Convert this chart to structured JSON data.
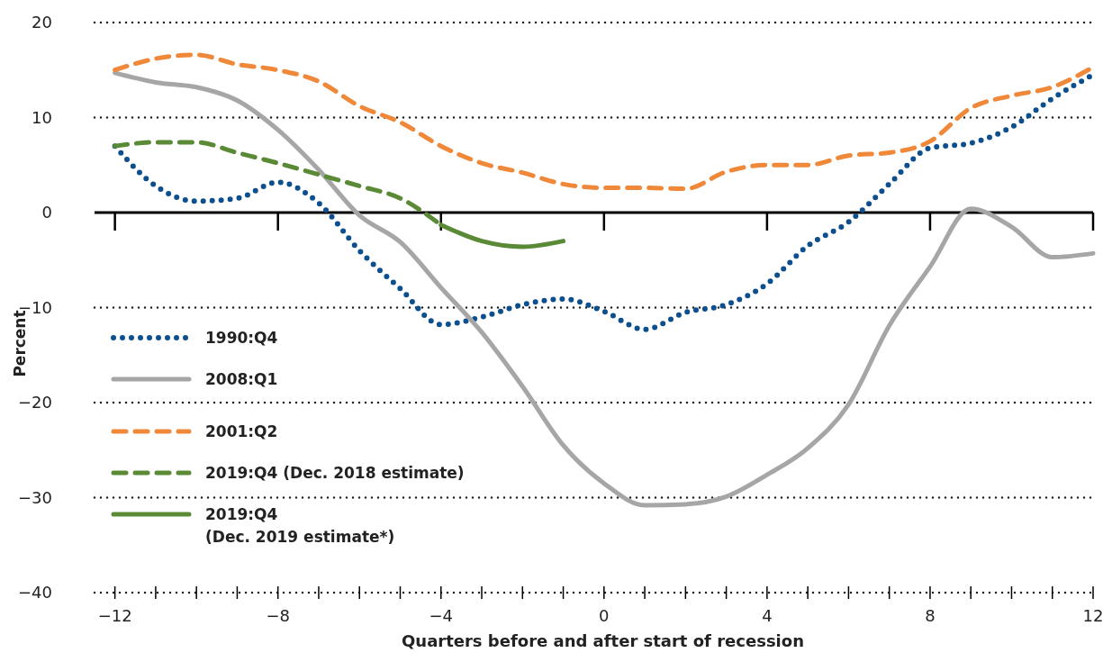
{
  "chart_data": {
    "type": "line",
    "xlabel": "Quarters before and after start of recession",
    "ylabel": "Percent",
    "xlim": [
      -12.5,
      12
    ],
    "xticks": [
      -12,
      {
        "value": -11,
        "label": null
      },
      {
        "value": -10,
        "label": null
      },
      {
        "value": -9,
        "label": null
      },
      -8,
      {
        "value": -7,
        "label": null
      },
      {
        "value": -6,
        "label": null
      },
      {
        "value": -5,
        "label": null
      },
      -4,
      {
        "value": -3,
        "label": null
      },
      {
        "value": -2,
        "label": null
      },
      {
        "value": -1,
        "label": null
      },
      0,
      {
        "value": 1,
        "label": null
      },
      {
        "value": 2,
        "label": null
      },
      {
        "value": 3,
        "label": null
      },
      4,
      {
        "value": 5,
        "label": null
      },
      {
        "value": 6,
        "label": null
      },
      {
        "value": 7,
        "label": null
      },
      8,
      {
        "value": 9,
        "label": null
      },
      {
        "value": 10,
        "label": null
      },
      {
        "value": 11,
        "label": null
      },
      12
    ],
    "ylim": [
      -40,
      20
    ],
    "yticks": [
      -40,
      -30,
      -20,
      -10,
      0,
      10,
      20
    ],
    "grid": "y",
    "legend": "left",
    "ref_lines": [
      {
        "axis": "y",
        "value": 0,
        "color": "#000000"
      }
    ],
    "x": [
      -12,
      -11,
      -10,
      -9,
      -8,
      -7,
      -6,
      -5,
      -4,
      -3,
      -2,
      -1,
      0,
      1,
      2,
      3,
      4,
      5,
      6,
      7,
      8,
      9,
      10,
      11,
      12
    ],
    "series": [
      {
        "name": "1990:Q4",
        "color": "#0b4f8f",
        "line_style": "dotted",
        "values": [
          7,
          2.8,
          1.2,
          1.5,
          3.2,
          1.0,
          -4,
          -8,
          -11.8,
          -11.0,
          -9.7,
          -9.1,
          -10.4,
          -12.3,
          -10.5,
          -9.7,
          -7.5,
          -3.5,
          -1.0,
          3,
          6.8,
          7.3,
          9,
          12,
          14.5
        ]
      },
      {
        "name": "2008:Q1",
        "color": "#a6a6a6",
        "line_style": "solid",
        "values": [
          14.7,
          13.7,
          13.2,
          11.8,
          8.7,
          4.5,
          -0.3,
          -3.1,
          -7.9,
          -12.6,
          -18.3,
          -24.5,
          -28.5,
          -30.8,
          -30.7,
          -29.9,
          -27.6,
          -24.8,
          -20.2,
          -11.9,
          -5.7,
          0.4,
          -1.5,
          -4.7,
          -4.3
        ]
      },
      {
        "name": "2001:Q2",
        "color": "#f0883a",
        "line_style": "dashed",
        "values": [
          15,
          16.2,
          16.6,
          15.6,
          15,
          13.8,
          11.2,
          9.5,
          7,
          5.2,
          4.2,
          3.0,
          2.6,
          2.6,
          2.5,
          4.3,
          5,
          5,
          6,
          6.3,
          7.5,
          11,
          12.3,
          13.2,
          15.3
        ]
      },
      {
        "name": "2019:Q4 (Dec. 2018 estimate)",
        "color": "#5a8a35",
        "line_style": "dashed",
        "x": [
          -12,
          -11,
          -10,
          -9,
          -8,
          -7,
          -6,
          -5,
          -4
        ],
        "values": [
          7,
          7.4,
          7.4,
          6.3,
          5.2,
          4,
          2.8,
          1.5,
          -1.3
        ]
      },
      {
        "name": "2019:Q4\n(Dec. 2019 estimate*)",
        "color": "#5a8a35",
        "line_style": "solid",
        "x": [
          -4,
          -3,
          -2,
          -1
        ],
        "values": [
          -1.3,
          -3.0,
          -3.6,
          -3.0
        ]
      }
    ]
  }
}
